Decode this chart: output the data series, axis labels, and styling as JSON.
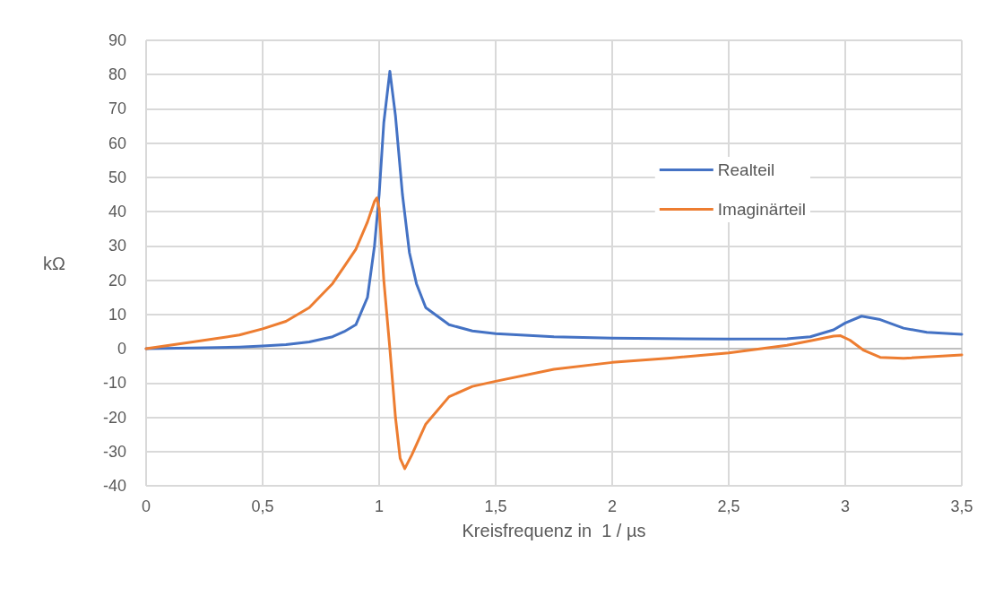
{
  "chart_data": {
    "type": "line",
    "xlabel": "Kreisfrequenz in  1 / µs",
    "ylabel": "kΩ",
    "xlim": [
      0,
      3.5
    ],
    "xticks": [
      0,
      {
        "value": 0.5,
        "label": "0,5"
      },
      1,
      {
        "value": 1.5,
        "label": "1,5"
      },
      2,
      {
        "value": 2.5,
        "label": "2,5"
      },
      3,
      {
        "value": 3.5,
        "label": "3,5"
      }
    ],
    "ylim": [
      -40,
      90
    ],
    "yticks": [
      -40,
      -30,
      -20,
      -10,
      0,
      10,
      20,
      30,
      40,
      50,
      60,
      70,
      80,
      90
    ],
    "grid": true,
    "legend": "right",
    "marker": "none",
    "line_style": "solid",
    "series": [
      {
        "name": "Realteil",
        "color": "#4472c4",
        "x": [
          0,
          0.2,
          0.4,
          0.5,
          0.6,
          0.7,
          0.8,
          0.85,
          0.9,
          0.95,
          0.98,
          1.0,
          1.02,
          1.046,
          1.07,
          1.1,
          1.13,
          1.16,
          1.2,
          1.3,
          1.4,
          1.5,
          1.75,
          2,
          2.5,
          2.75,
          2.85,
          2.95,
          3.0,
          3.07,
          3.15,
          3.25,
          3.35,
          3.5
        ],
        "values": [
          0,
          0.2,
          0.5,
          0.8,
          1.2,
          2,
          3.5,
          5,
          7,
          15,
          30,
          45,
          66,
          81,
          68,
          45,
          28,
          19,
          12,
          7,
          5.2,
          4.4,
          3.5,
          3.1,
          2.8,
          2.9,
          3.5,
          5.5,
          7.5,
          9.5,
          8.5,
          6,
          4.8,
          4.2
        ]
      },
      {
        "name": "Imaginärteil",
        "color": "#ed7d31",
        "x": [
          0,
          0.2,
          0.4,
          0.5,
          0.6,
          0.7,
          0.8,
          0.85,
          0.9,
          0.95,
          0.98,
          0.99,
          1.0,
          1.02,
          1.046,
          1.07,
          1.09,
          1.11,
          1.14,
          1.2,
          1.3,
          1.4,
          1.5,
          1.75,
          2,
          2.25,
          2.5,
          2.75,
          2.85,
          2.95,
          2.98,
          3.02,
          3.08,
          3.15,
          3.25,
          3.5
        ],
        "values": [
          0,
          2,
          4,
          5.8,
          8,
          12,
          19,
          24,
          29,
          37,
          43,
          44,
          41,
          20,
          0,
          -20,
          -32,
          -35,
          -31,
          -22,
          -14,
          -11,
          -9.5,
          -6,
          -4,
          -2.7,
          -1.2,
          1,
          2.3,
          3.7,
          3.8,
          2.5,
          -0.5,
          -2.5,
          -2.8,
          -1.8
        ]
      }
    ]
  }
}
